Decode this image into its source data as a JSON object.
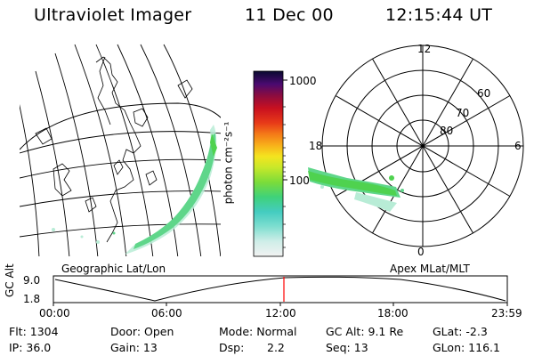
{
  "header": {
    "instrument": "Ultraviolet Imager",
    "date": "11 Dec 00",
    "time": "12:15:44 UT"
  },
  "colorbar": {
    "unit_label": "photon cm⁻²s⁻¹",
    "ticks": [
      "1000",
      "100"
    ]
  },
  "left_panel": {
    "label": "Geographic Lat/Lon"
  },
  "right_panel": {
    "label": "Apex MLat/MLT",
    "mlt_labels": [
      "12",
      "18",
      "6",
      "0"
    ],
    "mlat_labels": [
      "60",
      "70",
      "80"
    ]
  },
  "altitude_plot": {
    "ylabel": "GC Alt",
    "y_ticks": [
      "9.0",
      "1.8"
    ],
    "x_ticks": [
      "00:00",
      "06:00",
      "12:00",
      "18:00",
      "23:59"
    ],
    "current_time_marker": "12:15"
  },
  "info": {
    "flt": "Flt: 1304",
    "ip": "IP: 36.0",
    "door": "Door: Open",
    "gain": "Gain: 13",
    "mode": "Mode: Normal",
    "dsp_label": "Dsp:",
    "dsp_value": "2.2",
    "gc_alt": "GC Alt: 9.1 Re",
    "seq": "Seq: 13",
    "glat": "GLat:  -2.3",
    "glon": "GLon: 116.1"
  },
  "colors": {
    "marker": "#ff0000",
    "grid": "#000000",
    "aurora_main": "#5fd68a",
    "aurora_light": "#b8ecd6",
    "aurora_green": "#4fd24f"
  }
}
